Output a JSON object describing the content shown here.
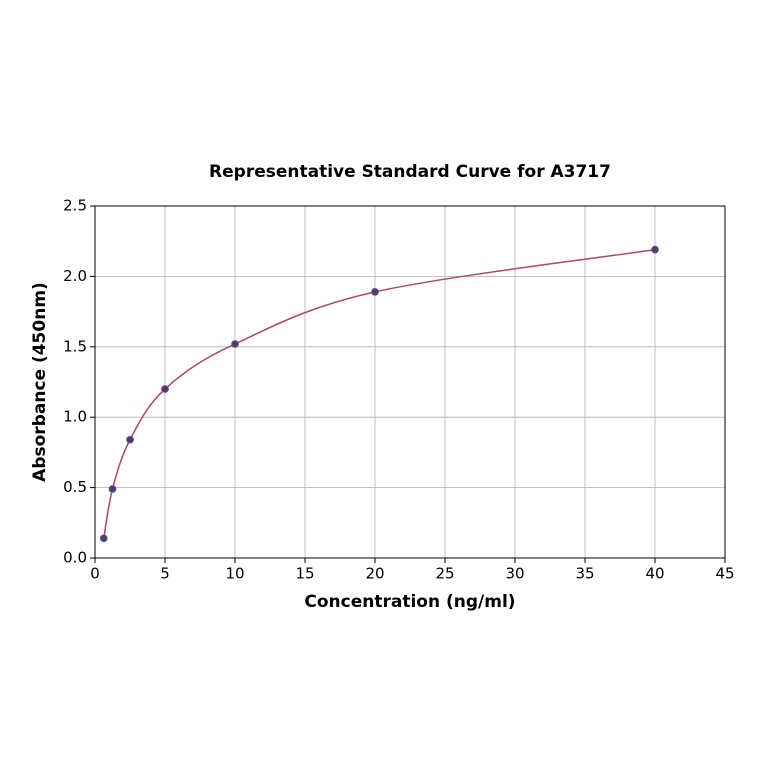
{
  "chart_data": {
    "type": "scatter",
    "title": "Representative Standard Curve for A3717",
    "x_label": "Concentration (ng/ml)",
    "y_label": "Absorbance (450nm)",
    "x": [
      0.625,
      1.25,
      2.5,
      5,
      10,
      20,
      40
    ],
    "values": [
      0.14,
      0.49,
      0.84,
      1.2,
      1.52,
      1.89,
      2.19
    ],
    "color": "#2e4a7d",
    "curve_color": "#b0466a",
    "xlim": [
      0,
      45
    ],
    "ylim": [
      0,
      2.5
    ],
    "xticks": [
      0,
      5,
      10,
      15,
      20,
      25,
      30,
      35,
      40,
      45
    ],
    "yticks": [
      {
        "value": 0,
        "label": "0.0"
      },
      0.5,
      {
        "value": 1,
        "label": "1.0"
      },
      1.5,
      {
        "value": 2,
        "label": "2.0"
      },
      2.5
    ],
    "grid": true
  }
}
